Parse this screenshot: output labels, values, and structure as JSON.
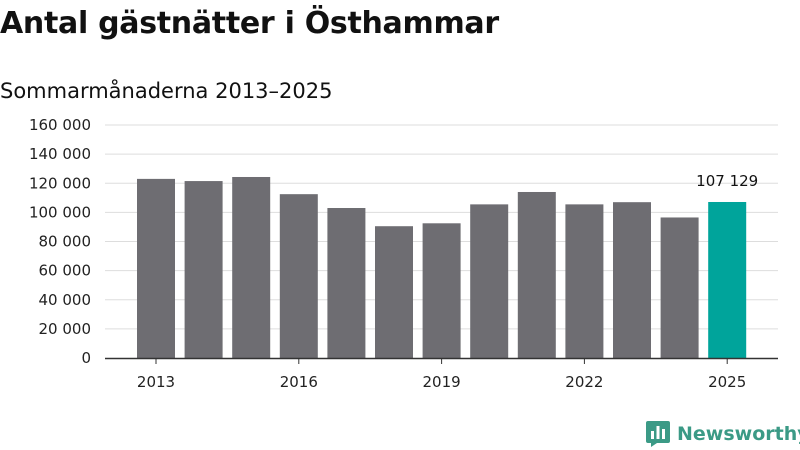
{
  "header": {
    "title": "Antal gästnätter i Östhammar",
    "subtitle": "Sommarmånaderna 2013–2025"
  },
  "brand": {
    "name": "Newsworthy",
    "logo_icon": "bar-chart-speech-bubble-icon",
    "color": "#3b9a86"
  },
  "chart_data": {
    "type": "bar",
    "title": "Antal gästnätter i Östhammar",
    "subtitle": "Sommarmånaderna 2013–2025",
    "xlabel": "",
    "ylabel": "",
    "categories": [
      "2013",
      "2014",
      "2015",
      "2016",
      "2017",
      "2018",
      "2019",
      "2020",
      "2021",
      "2022",
      "2023",
      "2024",
      "2025"
    ],
    "x_tick_labels": [
      "2013",
      "2016",
      "2019",
      "2022",
      "2025"
    ],
    "values": [
      123000,
      121500,
      124300,
      112500,
      103000,
      90500,
      92500,
      105500,
      114000,
      105500,
      107000,
      96500,
      107129
    ],
    "ylim": [
      0,
      160000
    ],
    "y_ticks": [
      0,
      20000,
      40000,
      60000,
      80000,
      100000,
      120000,
      140000,
      160000
    ],
    "y_tick_labels": [
      "0",
      "20 000",
      "40 000",
      "60 000",
      "80 000",
      "100 000",
      "120 000",
      "140 000",
      "160 000"
    ],
    "grid": true,
    "bar_color": "#6e6d72",
    "highlight_color": "#00a49b",
    "highlight_index": 12,
    "annotations": [
      {
        "index": 12,
        "text": "107 129"
      }
    ]
  }
}
